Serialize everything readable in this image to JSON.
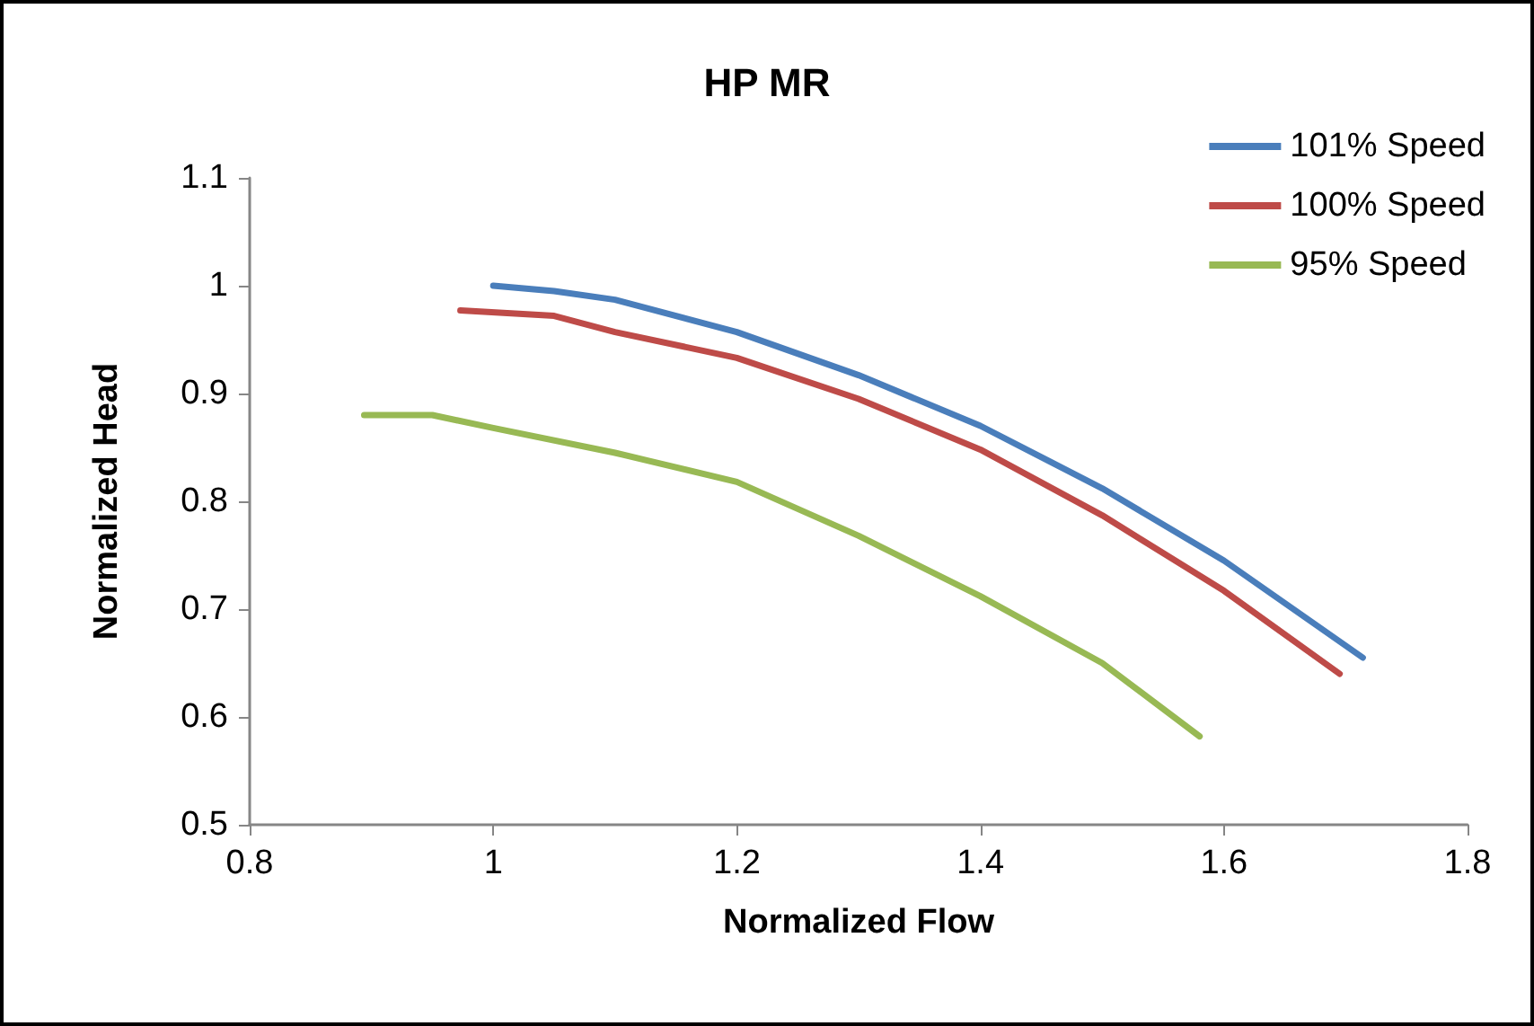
{
  "chart_data": {
    "type": "line",
    "title": "HP MR",
    "xlabel": "Normalized Flow",
    "ylabel": "Normalized Head",
    "xlim": [
      0.8,
      1.8
    ],
    "xticks": [
      0.8,
      1,
      1.2,
      1.4,
      1.6,
      1.8
    ],
    "ylim": [
      0.5,
      1.1
    ],
    "yticks": [
      0.5,
      0.6,
      0.7,
      0.8,
      0.9,
      1,
      1.1
    ],
    "legend": "top right",
    "series": [
      {
        "name": "101% Speed",
        "color": "#4a7ebb",
        "x": [
          1.0,
          1.05,
          1.1,
          1.2,
          1.3,
          1.4,
          1.5,
          1.6,
          1.714
        ],
        "values": [
          1.0,
          0.995,
          0.987,
          0.957,
          0.917,
          0.87,
          0.812,
          0.745,
          0.655
        ]
      },
      {
        "name": "100% Speed",
        "color": "#be4b48",
        "x": [
          0.973,
          1.05,
          1.1,
          1.2,
          1.3,
          1.4,
          1.5,
          1.6,
          1.695
        ],
        "values": [
          0.977,
          0.972,
          0.957,
          0.933,
          0.895,
          0.848,
          0.787,
          0.717,
          0.64
        ]
      },
      {
        "name": "95% Speed",
        "color": "#98b954",
        "x": [
          0.894,
          0.95,
          1.0,
          1.1,
          1.2,
          1.3,
          1.4,
          1.5,
          1.58
        ],
        "values": [
          0.88,
          0.88,
          0.868,
          0.845,
          0.818,
          0.768,
          0.712,
          0.65,
          0.582
        ]
      }
    ]
  }
}
